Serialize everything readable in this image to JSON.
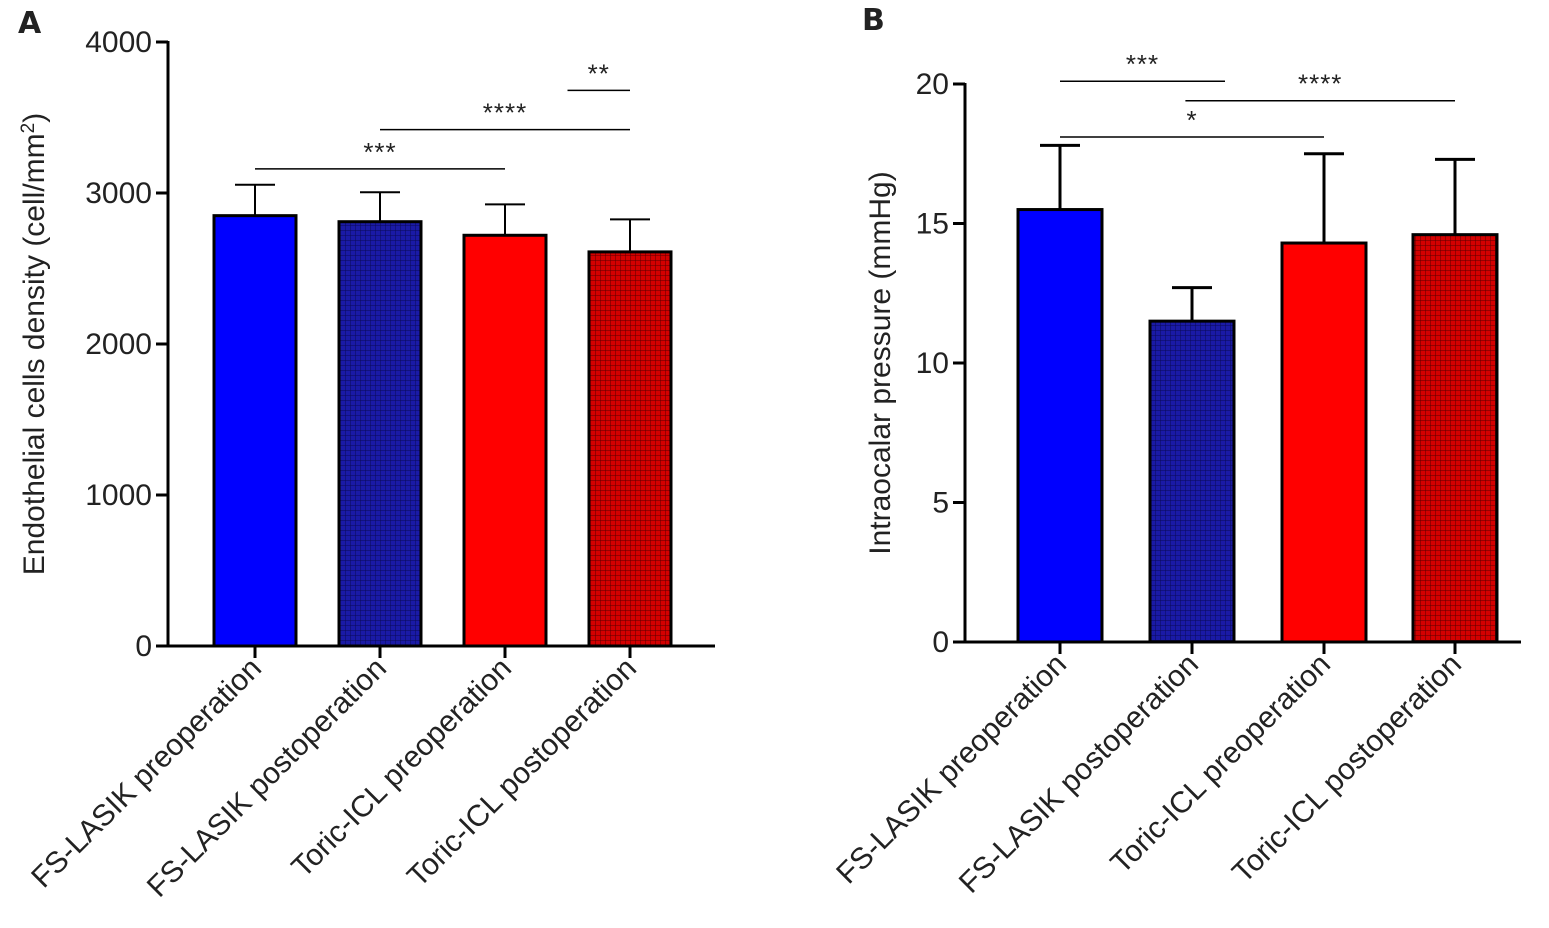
{
  "panels": [
    {
      "letter": "A"
    },
    {
      "letter": "B"
    }
  ],
  "colors": {
    "fs_lasik": "#0000ff",
    "fs_lasik_post": "#1a1aa6",
    "toric_icl": "#ff0000",
    "toric_icl_post": "#d40000",
    "grid_blue": "#0a0a55",
    "grid_red": "#5a0000",
    "axis": "#000000"
  },
  "chart_data": [
    {
      "type": "bar",
      "categories": [
        "FS-LASIK preoperation",
        "FS-LASIK postoperation",
        "Toric-ICL preoperation",
        "Toric-ICL postoperation"
      ],
      "values": [
        2850,
        2810,
        2720,
        2610
      ],
      "errors": [
        205,
        195,
        205,
        215
      ],
      "ylabel": "Endothelial cells density (cell/mm",
      "ylabel_sup": "2",
      "ylabel_end": ")",
      "ylim": [
        0,
        4000
      ],
      "yticks": [
        "0",
        "1000",
        "2000",
        "3000",
        "4000"
      ],
      "ytick_values": [
        0,
        1000,
        2000,
        3000,
        4000
      ],
      "patterns": [
        "solid",
        "grid",
        "solid",
        "grid"
      ],
      "colors": [
        "#0000ff",
        "#1a1aa6",
        "#ff0000",
        "#d40000"
      ],
      "significance": [
        {
          "label": "**",
          "from": 2.5,
          "to": 3,
          "y": 3680
        },
        {
          "label": "****",
          "from": 1,
          "to": 3,
          "y": 3420
        },
        {
          "label": "***",
          "from": 0,
          "to": 2,
          "y": 3160
        }
      ]
    },
    {
      "type": "bar",
      "categories": [
        "FS-LASIK preoperation",
        "FS-LASIK postoperation",
        "Toric-ICL preoperation",
        "Toric-ICL postoperation"
      ],
      "values": [
        15.5,
        11.5,
        14.3,
        14.6
      ],
      "errors": [
        2.3,
        1.2,
        3.2,
        2.7
      ],
      "ylabel": "Intraocalar pressure (mmHg)",
      "ylim": [
        0,
        20
      ],
      "yticks": [
        "0",
        "5",
        "10",
        "15",
        "20"
      ],
      "ytick_values": [
        0,
        5,
        10,
        15,
        20
      ],
      "patterns": [
        "solid",
        "grid",
        "solid",
        "grid"
      ],
      "colors": [
        "#0000ff",
        "#1a1aa6",
        "#ff0000",
        "#d40000"
      ],
      "significance": [
        {
          "label": "***",
          "from": 0,
          "to": 1.25,
          "y": 20.1
        },
        {
          "label": "****",
          "from": 0.95,
          "to": 3.05,
          "y": 19.4
        },
        {
          "label": "*",
          "from": 0,
          "to": 2,
          "y": 18.1
        }
      ]
    }
  ]
}
